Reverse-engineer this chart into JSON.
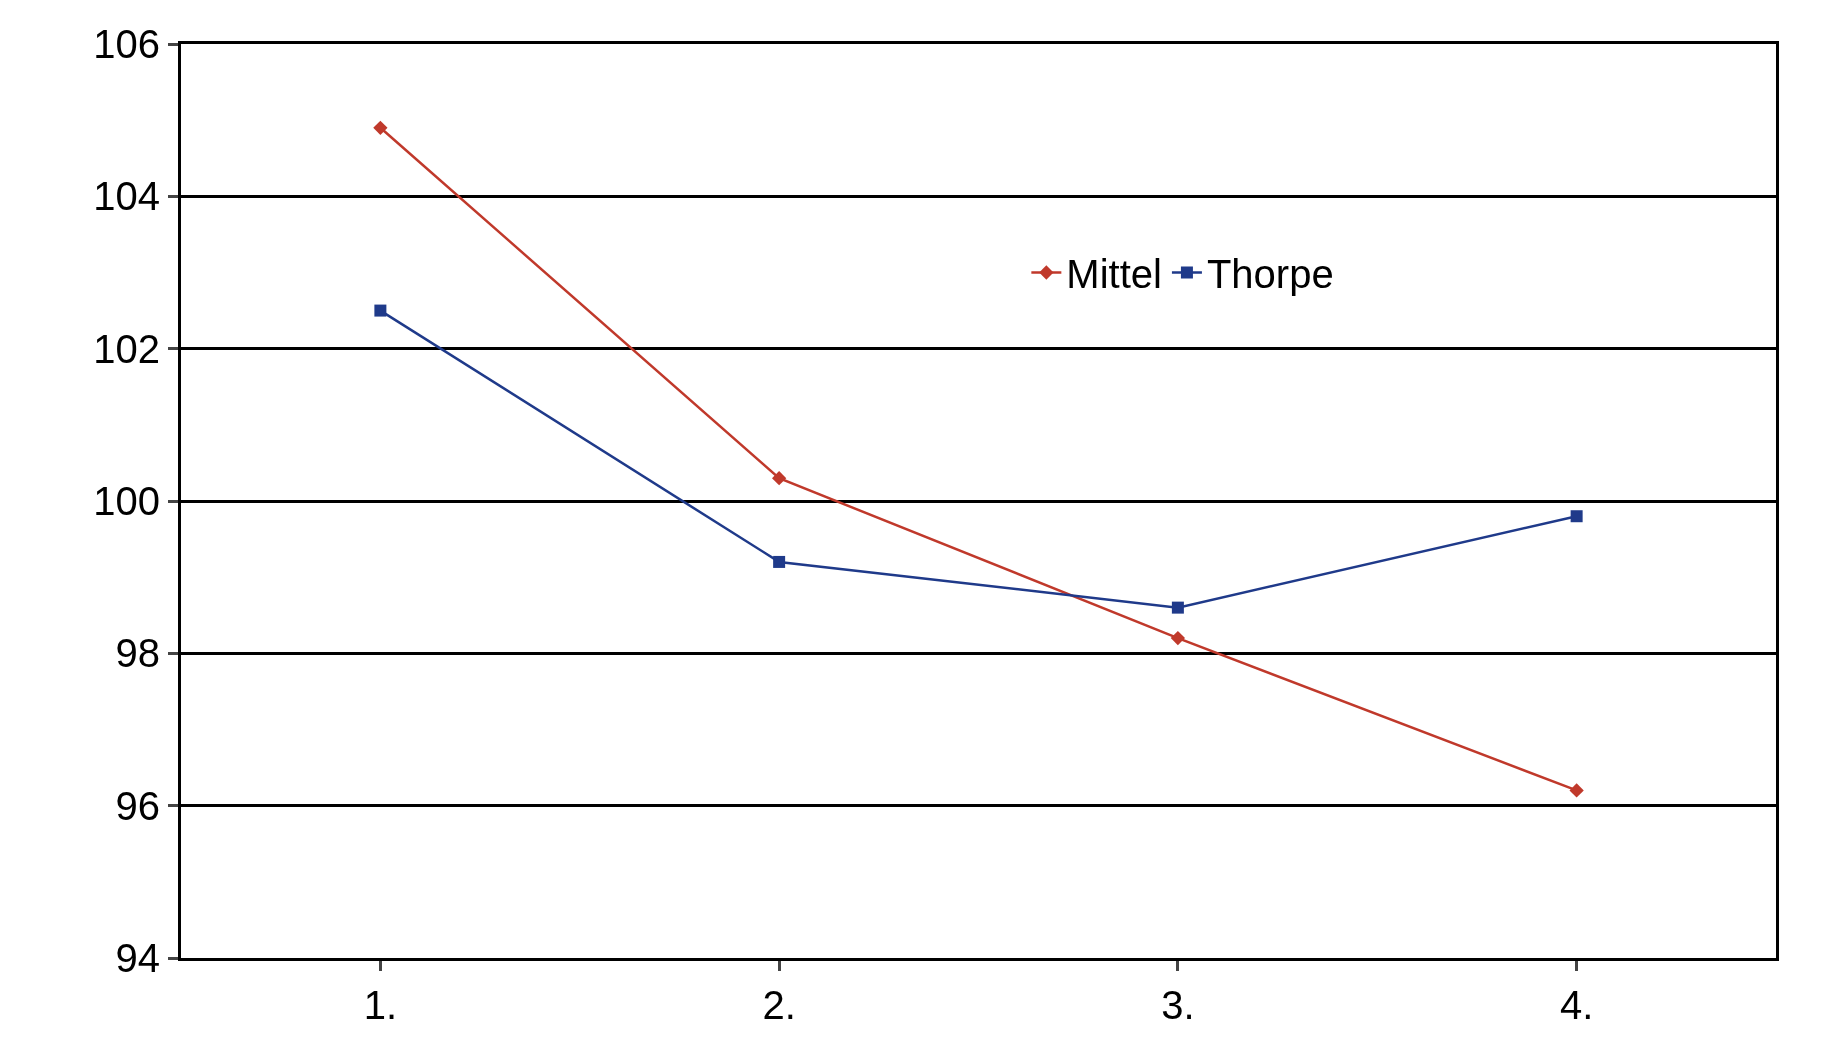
{
  "chart_data": {
    "type": "line",
    "categories": [
      "1.",
      "2.",
      "3.",
      "4."
    ],
    "series": [
      {
        "name": "Mittel",
        "color": "#c0392b",
        "marker": "diamond",
        "values": [
          104.9,
          100.3,
          98.2,
          96.2
        ]
      },
      {
        "name": "Thorpe",
        "color": "#1f3a8a",
        "marker": "square",
        "values": [
          102.5,
          99.2,
          98.6,
          99.8
        ]
      }
    ],
    "ylim": [
      94,
      106
    ],
    "yticks": [
      94,
      96,
      98,
      100,
      102,
      104,
      106
    ],
    "grid": "y",
    "legend": "top right"
  }
}
